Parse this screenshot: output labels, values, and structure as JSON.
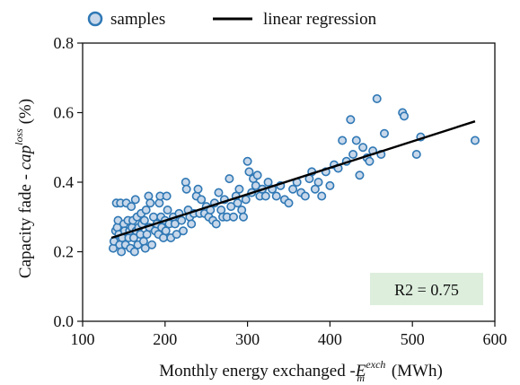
{
  "chart_data": {
    "type": "scatter",
    "title": "",
    "xlabel": {
      "prefix": "Monthly energy exchanged -",
      "symbol": "E",
      "sub": "m",
      "sup": "exch",
      "unit": " (MWh)"
    },
    "ylabel": {
      "prefix": "Capacity fade - ",
      "symbol": "cap",
      "sup": "loss",
      "unit": " (%)"
    },
    "xlim": [
      100,
      600
    ],
    "ylim": [
      0.0,
      0.8
    ],
    "xticks": [
      "100",
      "200",
      "300",
      "400",
      "500",
      "600"
    ],
    "yticks": [
      "0.0",
      "0.2",
      "0.4",
      "0.6",
      "0.8"
    ],
    "grid": false,
    "legend": {
      "placement": "top",
      "entries": [
        {
          "label": "samples",
          "kind": "marker"
        },
        {
          "label": "linear regression",
          "kind": "line"
        }
      ]
    },
    "annotation": {
      "text": "R2 = 0.75",
      "background": "#ddeedd",
      "placement": "bottom-right"
    },
    "colors": {
      "marker_fill": "#c8d8ea",
      "marker_edge": "#2f78b5",
      "line": "#000000"
    },
    "series": [
      {
        "name": "samples",
        "kind": "scatter",
        "points": [
          [
            137,
            0.21
          ],
          [
            138,
            0.23
          ],
          [
            140,
            0.26
          ],
          [
            141,
            0.34
          ],
          [
            142,
            0.27
          ],
          [
            143,
            0.29
          ],
          [
            144,
            0.25
          ],
          [
            145,
            0.22
          ],
          [
            146,
            0.34
          ],
          [
            147,
            0.2
          ],
          [
            148,
            0.24
          ],
          [
            150,
            0.28
          ],
          [
            151,
            0.26
          ],
          [
            152,
            0.22
          ],
          [
            153,
            0.34
          ],
          [
            155,
            0.29
          ],
          [
            156,
            0.24
          ],
          [
            157,
            0.26
          ],
          [
            158,
            0.21
          ],
          [
            159,
            0.33
          ],
          [
            160,
            0.27
          ],
          [
            161,
            0.29
          ],
          [
            162,
            0.24
          ],
          [
            163,
            0.2
          ],
          [
            164,
            0.35
          ],
          [
            165,
            0.26
          ],
          [
            166,
            0.3
          ],
          [
            167,
            0.22
          ],
          [
            168,
            0.27
          ],
          [
            170,
            0.25
          ],
          [
            171,
            0.31
          ],
          [
            172,
            0.28
          ],
          [
            174,
            0.23
          ],
          [
            175,
            0.29
          ],
          [
            176,
            0.21
          ],
          [
            177,
            0.32
          ],
          [
            178,
            0.25
          ],
          [
            180,
            0.36
          ],
          [
            181,
            0.27
          ],
          [
            182,
            0.34
          ],
          [
            184,
            0.22
          ],
          [
            186,
            0.3
          ],
          [
            188,
            0.26
          ],
          [
            190,
            0.28
          ],
          [
            192,
            0.25
          ],
          [
            193,
            0.34
          ],
          [
            194,
            0.36
          ],
          [
            195,
            0.3
          ],
          [
            196,
            0.27
          ],
          [
            198,
            0.24
          ],
          [
            200,
            0.29
          ],
          [
            201,
            0.26
          ],
          [
            202,
            0.36
          ],
          [
            203,
            0.32
          ],
          [
            205,
            0.28
          ],
          [
            207,
            0.24
          ],
          [
            210,
            0.3
          ],
          [
            212,
            0.28
          ],
          [
            214,
            0.25
          ],
          [
            217,
            0.31
          ],
          [
            220,
            0.29
          ],
          [
            222,
            0.26
          ],
          [
            225,
            0.4
          ],
          [
            226,
            0.38
          ],
          [
            228,
            0.32
          ],
          [
            230,
            0.3
          ],
          [
            232,
            0.28
          ],
          [
            235,
            0.31
          ],
          [
            238,
            0.36
          ],
          [
            240,
            0.38
          ],
          [
            242,
            0.31
          ],
          [
            244,
            0.35
          ],
          [
            248,
            0.31
          ],
          [
            250,
            0.33
          ],
          [
            253,
            0.3
          ],
          [
            255,
            0.32
          ],
          [
            258,
            0.29
          ],
          [
            260,
            0.34
          ],
          [
            262,
            0.28
          ],
          [
            265,
            0.37
          ],
          [
            268,
            0.32
          ],
          [
            270,
            0.3
          ],
          [
            272,
            0.35
          ],
          [
            275,
            0.3
          ],
          [
            278,
            0.41
          ],
          [
            280,
            0.33
          ],
          [
            283,
            0.3
          ],
          [
            286,
            0.36
          ],
          [
            288,
            0.34
          ],
          [
            290,
            0.38
          ],
          [
            293,
            0.32
          ],
          [
            295,
            0.3
          ],
          [
            298,
            0.35
          ],
          [
            300,
            0.46
          ],
          [
            302,
            0.43
          ],
          [
            305,
            0.37
          ],
          [
            307,
            0.41
          ],
          [
            310,
            0.39
          ],
          [
            312,
            0.42
          ],
          [
            315,
            0.36
          ],
          [
            318,
            0.38
          ],
          [
            322,
            0.36
          ],
          [
            325,
            0.4
          ],
          [
            330,
            0.38
          ],
          [
            335,
            0.36
          ],
          [
            340,
            0.39
          ],
          [
            345,
            0.35
          ],
          [
            350,
            0.34
          ],
          [
            355,
            0.38
          ],
          [
            360,
            0.4
          ],
          [
            365,
            0.37
          ],
          [
            370,
            0.36
          ],
          [
            375,
            0.41
          ],
          [
            378,
            0.43
          ],
          [
            382,
            0.38
          ],
          [
            386,
            0.4
          ],
          [
            390,
            0.36
          ],
          [
            395,
            0.43
          ],
          [
            400,
            0.39
          ],
          [
            405,
            0.45
          ],
          [
            410,
            0.44
          ],
          [
            415,
            0.52
          ],
          [
            420,
            0.46
          ],
          [
            425,
            0.58
          ],
          [
            428,
            0.48
          ],
          [
            432,
            0.52
          ],
          [
            436,
            0.42
          ],
          [
            440,
            0.5
          ],
          [
            445,
            0.47
          ],
          [
            448,
            0.46
          ],
          [
            452,
            0.49
          ],
          [
            457,
            0.64
          ],
          [
            462,
            0.48
          ],
          [
            466,
            0.54
          ],
          [
            488,
            0.6
          ],
          [
            490,
            0.59
          ],
          [
            505,
            0.48
          ],
          [
            510,
            0.53
          ],
          [
            576,
            0.52
          ]
        ]
      },
      {
        "name": "linear regression",
        "kind": "line",
        "points": [
          [
            135,
            0.24
          ],
          [
            576,
            0.575
          ]
        ]
      }
    ]
  }
}
